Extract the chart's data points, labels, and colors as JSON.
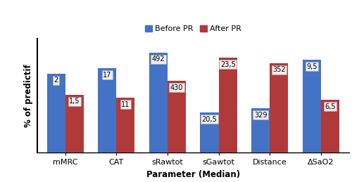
{
  "categories": [
    "mMRC",
    "CAT",
    "sRawtot",
    "sGawtot",
    "Distance",
    "ΔSaO2"
  ],
  "before_pr_display": [
    75,
    80,
    95,
    38,
    42,
    88
  ],
  "after_pr_display": [
    55,
    52,
    68,
    90,
    85,
    50
  ],
  "before_labels": [
    "2",
    "17",
    "492",
    "20,5",
    "329",
    "9,5"
  ],
  "after_labels": [
    "1,5",
    "11",
    "430",
    "23,5",
    "352",
    "6,5"
  ],
  "bar_color_before": "#4472C4",
  "bar_color_after": "#B03A3A",
  "xlabel": "Parameter (Median)",
  "ylabel": "% of predictif",
  "legend_before": "Before PR",
  "legend_after": "After PR",
  "bar_width": 0.36,
  "axis_fontsize": 8.5,
  "tick_fontsize": 8,
  "label_fontsize": 7,
  "legend_fontsize": 8
}
